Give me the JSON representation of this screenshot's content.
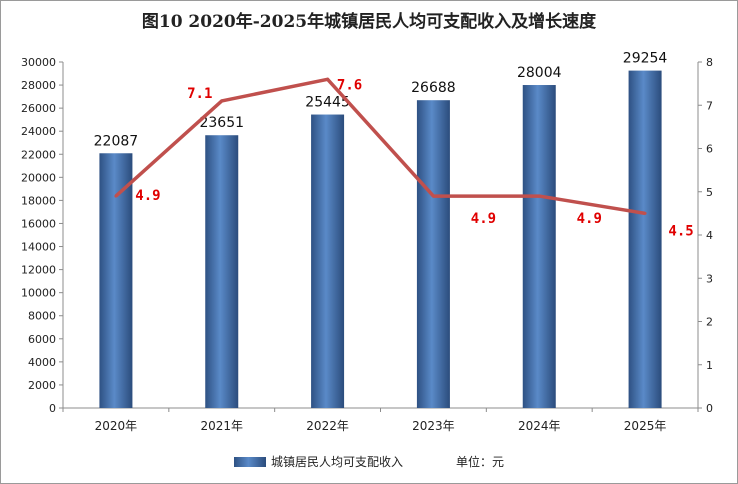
{
  "title": "图10  2020年-2025年城镇居民人均可支配收入及增长速度",
  "chart_data": {
    "type": "bar",
    "categories": [
      "2020年",
      "2021年",
      "2022年",
      "2023年",
      "2024年",
      "2025年"
    ],
    "series": [
      {
        "name": "城镇居民人均可支配收入",
        "type": "bar",
        "axis": "left",
        "values": [
          22087,
          23651,
          25445,
          26688,
          28004,
          29254
        ],
        "color": "#4a77b4"
      },
      {
        "name": "",
        "type": "line",
        "axis": "right",
        "values": [
          4.9,
          7.1,
          7.6,
          4.9,
          4.9,
          4.5
        ],
        "labels": [
          "4.9",
          "7.1",
          "7.6",
          "4.9",
          "4.9",
          "4.5"
        ],
        "color": "#c0504d"
      }
    ],
    "ylim_left": [
      0,
      30000
    ],
    "yticks_left": [
      0,
      2000,
      4000,
      6000,
      8000,
      10000,
      12000,
      14000,
      16000,
      18000,
      20000,
      22000,
      24000,
      26000,
      28000,
      30000
    ],
    "ylim_right": [
      0,
      8
    ],
    "yticks_right": [
      0,
      1,
      2,
      3,
      4,
      5,
      6,
      7,
      8
    ],
    "grid": false,
    "legend": {
      "position": "bottom",
      "entries": [
        "城镇居民人均可支配收入"
      ]
    },
    "unit_note": "单位：元",
    "label_color": "#e00000"
  }
}
